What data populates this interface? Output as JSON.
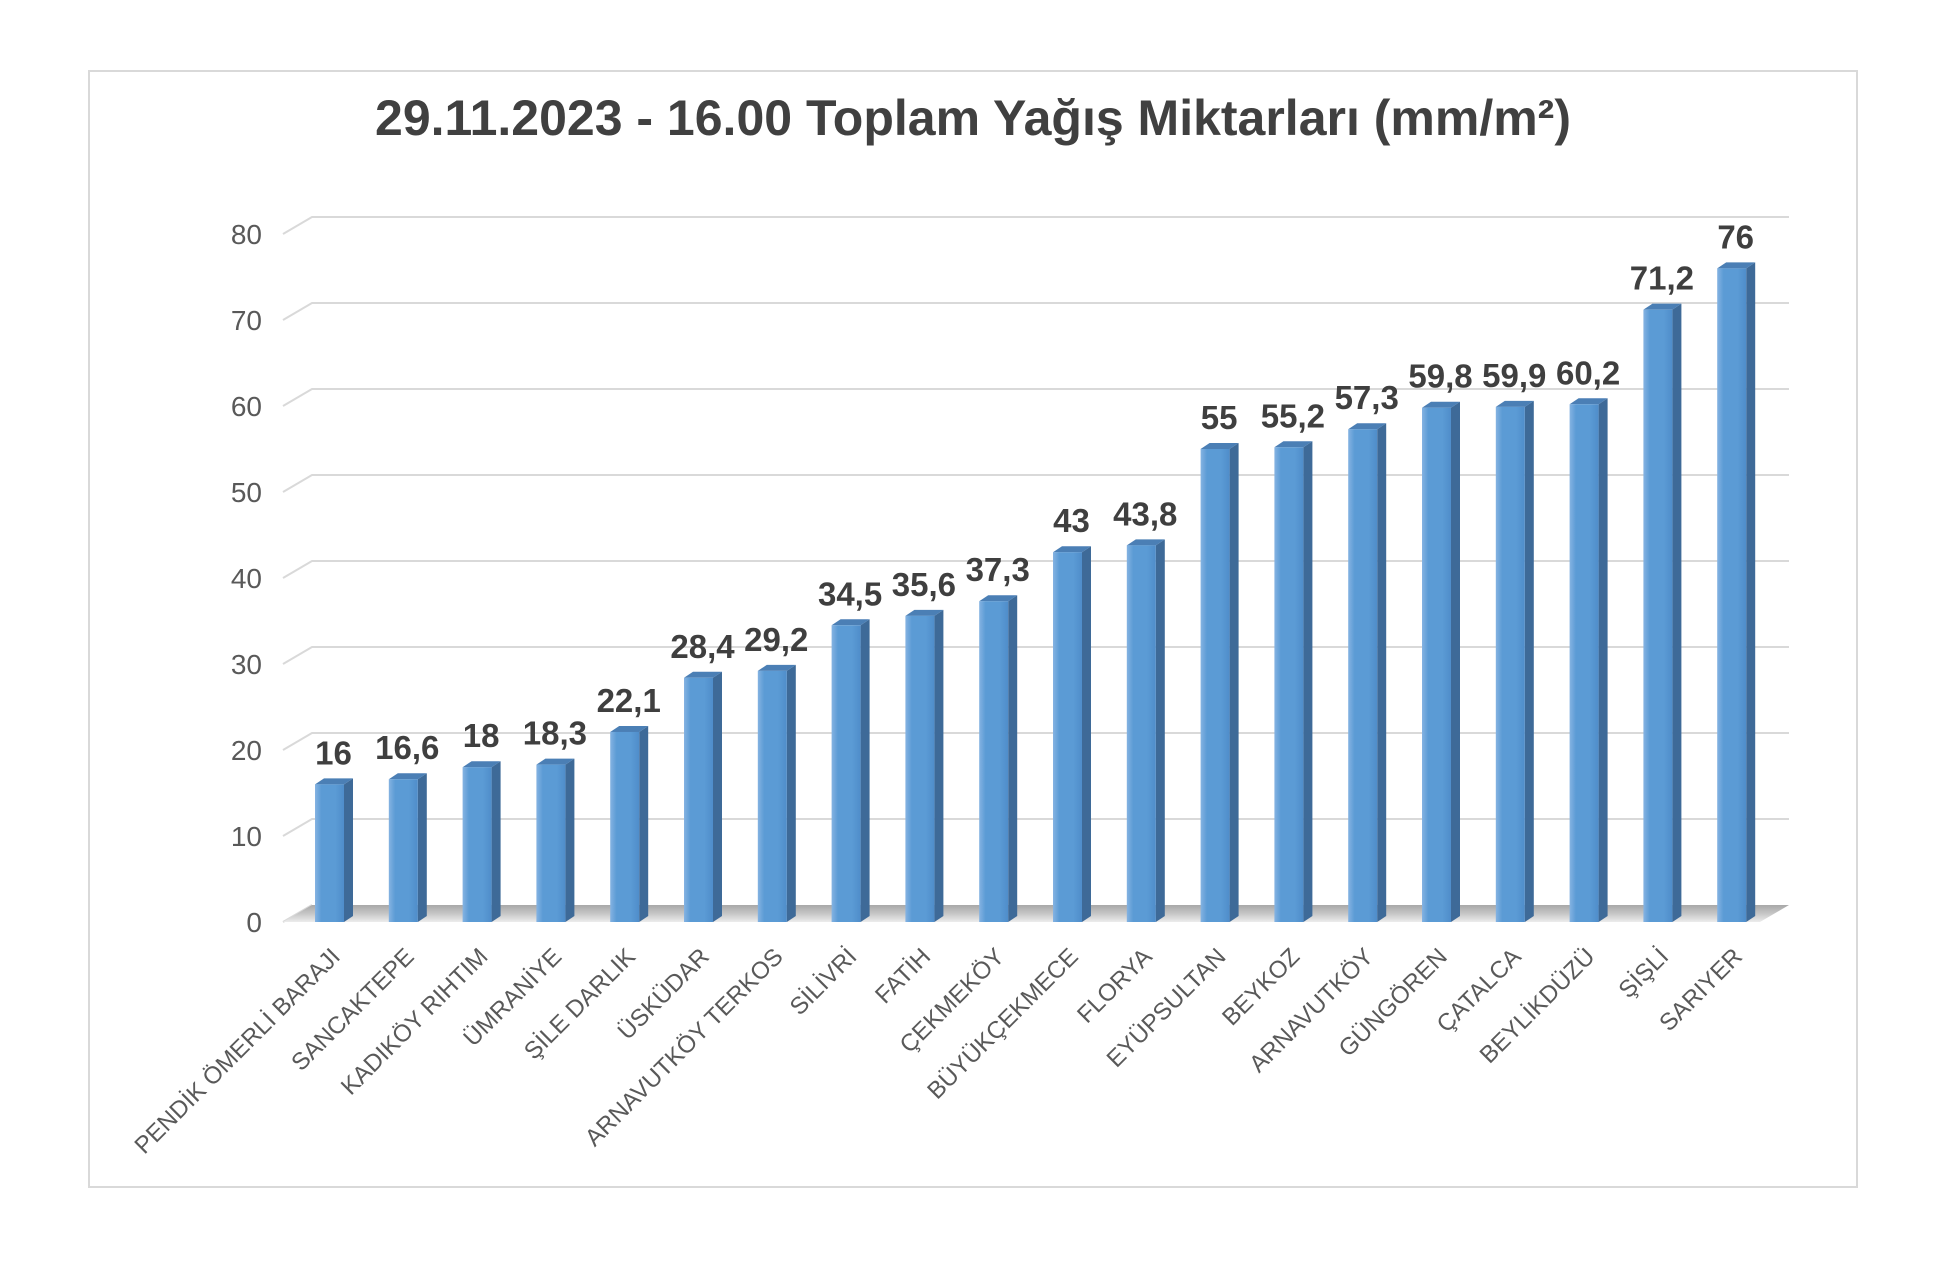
{
  "chart": {
    "frame_border_color": "#d9d9d9",
    "background_color": "#ffffff"
  },
  "chart_data": {
    "type": "bar",
    "style": "3d-column",
    "title": "29.11.2023 - 16.00 Toplam Yağış Miktarları (mm/m²)",
    "categories": [
      "PENDİK ÖMERLİ BARAJI",
      "SANCAKTEPE",
      "KADIKÖY RIHTIM",
      "ÜMRANİYE",
      "ŞİLE DARLIK",
      "ÜSKÜDAR",
      "ARNAVUTKÖY TERKOS",
      "SİLİVRİ",
      "FATİH",
      "ÇEKMEKÖY",
      "BÜYÜKÇEKMECE",
      "FLORYA",
      "EYÜPSULTAN",
      "BEYKOZ",
      "ARNAVUTKÖY",
      "GÜNGÖREN",
      "ÇATALCA",
      "BEYLİKDÜZÜ",
      "ŞİŞLİ",
      "SARIYER"
    ],
    "values": [
      16,
      16.6,
      18,
      18.3,
      22.1,
      28.4,
      29.2,
      34.5,
      35.6,
      37.3,
      43,
      43.8,
      55,
      55.2,
      57.3,
      59.8,
      59.9,
      60.2,
      71.2,
      76
    ],
    "value_labels": [
      "16",
      "16,6",
      "18",
      "18,3",
      "22,1",
      "28,4",
      "29,2",
      "34,5",
      "35,6",
      "37,3",
      "43",
      "43,8",
      "55",
      "55,2",
      "57,3",
      "59,8",
      "59,9",
      "60,2",
      "71,2",
      "76"
    ],
    "xlabel": "",
    "ylabel": "",
    "ylim": [
      0,
      80
    ],
    "yticks": [
      0,
      10,
      20,
      30,
      40,
      50,
      60,
      70,
      80
    ],
    "grid": true,
    "legend": false,
    "colors": {
      "bar_front": "#5b9bd5",
      "bar_front_light": "#85b3e2",
      "bar_front_dark": "#4f8dca",
      "bar_side": "#3e6a98",
      "bar_top": "#4b7fb5",
      "gridline": "#d9d9d9",
      "floor_back": "#a8a8a8",
      "floor_mid": "#c6c6c6",
      "floor_front": "#ececec",
      "tick_text": "#595959",
      "value_text": "#3f3f3f",
      "title_text": "#404040"
    }
  }
}
